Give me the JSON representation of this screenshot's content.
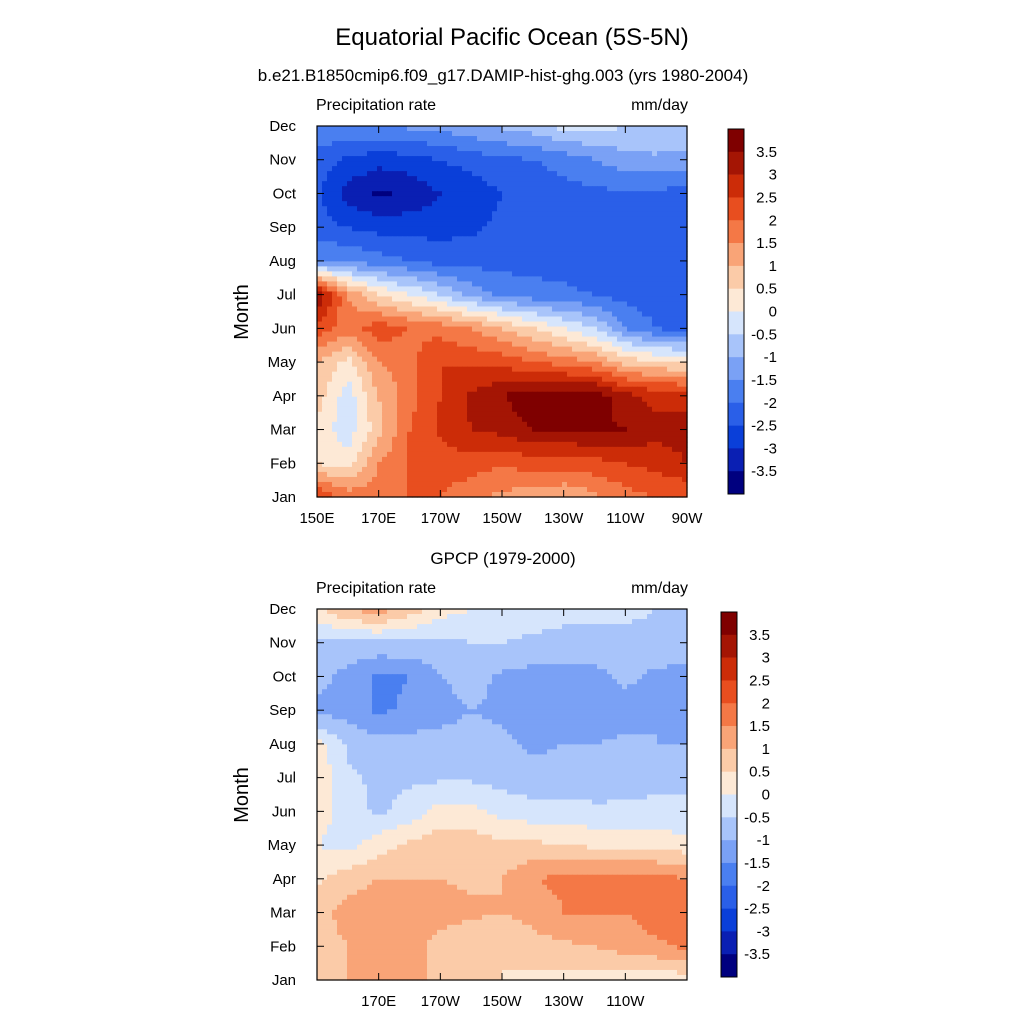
{
  "title": "Equatorial Pacific Ocean (5S-5N)",
  "colorbar": {
    "levels": [
      -3.5,
      -3,
      -2.5,
      -2,
      -1.5,
      -1,
      -0.5,
      0,
      0.5,
      1,
      1.5,
      2,
      2.5,
      3,
      3.5
    ],
    "labels": [
      "3.5",
      "3",
      "2.5",
      "2",
      "1.5",
      "1",
      "0.5",
      "0",
      "-0.5",
      "-1",
      "-1.5",
      "-2",
      "-2.5",
      "-3",
      "-3.5"
    ],
    "colors": [
      "#00007f",
      "#0a1fb3",
      "#0a3fd9",
      "#2a5fe8",
      "#4a7ff0",
      "#7aa1f5",
      "#a8c4fa",
      "#d6e5fc",
      "#fde9d6",
      "#fbcba8",
      "#f9a477",
      "#f47846",
      "#e84e1f",
      "#cc2c08",
      "#a41504",
      "#7f0000"
    ]
  },
  "chart_data": [
    {
      "type": "heatmap",
      "subtitle": "b.e21.B1850cmip6.f09_g17.DAMIP-hist-ghg.003 (yrs 1980-2004)",
      "left_label": "Precipitation rate",
      "right_label": "mm/day",
      "ylabel": "Month",
      "xticklabels": [
        "150E",
        "170E",
        "170W",
        "150W",
        "130W",
        "110W",
        "90W"
      ],
      "yticklabels": [
        "Jan",
        "Feb",
        "Mar",
        "Apr",
        "May",
        "Jun",
        "Jul",
        "Aug",
        "Sep",
        "Oct",
        "Nov",
        "Dec"
      ],
      "x": [
        "150E",
        "160E",
        "170E",
        "180",
        "170W",
        "160W",
        "150W",
        "140W",
        "130W",
        "120W",
        "110W",
        "100W",
        "90W"
      ],
      "y": [
        "Jan",
        "Feb",
        "Mar",
        "Apr",
        "May",
        "Jun",
        "Jul",
        "Aug",
        "Sep",
        "Oct",
        "Nov",
        "Dec"
      ],
      "values": [
        [
          2.5,
          1.8,
          1.8,
          2.0,
          2.0,
          1.6,
          1.4,
          1.2,
          1.0,
          1.4,
          1.8,
          2.0,
          2.0
        ],
        [
          0.5,
          0.2,
          1.5,
          2.0,
          2.3,
          2.3,
          2.0,
          2.3,
          2.3,
          2.3,
          2.5,
          2.7,
          3.0
        ],
        [
          0.3,
          -0.3,
          0.8,
          2.0,
          2.6,
          3.0,
          3.2,
          3.5,
          3.5,
          3.6,
          3.5,
          3.2,
          3.2
        ],
        [
          0.8,
          -0.3,
          1.0,
          1.8,
          2.5,
          3.1,
          3.5,
          3.8,
          3.8,
          3.8,
          3.2,
          2.8,
          2.8
        ],
        [
          1.0,
          0.3,
          1.5,
          1.8,
          2.5,
          2.4,
          2.3,
          2.0,
          1.8,
          1.5,
          0.8,
          0.6,
          0.4
        ],
        [
          2.3,
          1.8,
          2.3,
          2.0,
          1.8,
          1.5,
          1.0,
          0.5,
          0.0,
          -0.5,
          -1.5,
          -2.0,
          -2.2
        ],
        [
          3.5,
          1.5,
          0.5,
          0.0,
          -0.5,
          -1.2,
          -1.6,
          -1.8,
          -1.9,
          -2.0,
          -2.2,
          -2.3,
          -2.3
        ],
        [
          -1.5,
          -1.6,
          -1.8,
          -2.0,
          -2.2,
          -2.2,
          -2.2,
          -2.2,
          -2.2,
          -2.3,
          -2.2,
          -2.3,
          -2.3
        ],
        [
          -2.3,
          -2.5,
          -2.7,
          -2.7,
          -2.7,
          -2.6,
          -2.4,
          -2.3,
          -2.2,
          -2.1,
          -2.2,
          -2.2,
          -2.2
        ],
        [
          -2.4,
          -3.2,
          -3.6,
          -3.4,
          -3.0,
          -2.8,
          -2.5,
          -2.4,
          -2.2,
          -2.1,
          -2.1,
          -2.1,
          -2.2
        ],
        [
          -2.2,
          -2.6,
          -2.8,
          -2.7,
          -2.5,
          -2.3,
          -2.1,
          -2.0,
          -1.8,
          -1.5,
          -1.2,
          -1.1,
          -1.2
        ],
        [
          -1.6,
          -1.6,
          -1.5,
          -1.4,
          -1.3,
          -1.1,
          -0.9,
          -0.7,
          -0.3,
          -0.3,
          -0.5,
          -0.5,
          -0.6
        ]
      ]
    },
    {
      "type": "heatmap",
      "subtitle": "GPCP (1979-2000)",
      "left_label": "Precipitation rate",
      "right_label": "mm/day",
      "ylabel": "Month",
      "xticklabels": [
        "170E",
        "170W",
        "150W",
        "130W",
        "110W"
      ],
      "yticklabels": [
        "Jan",
        "Feb",
        "Mar",
        "Apr",
        "May",
        "Jun",
        "Jul",
        "Aug",
        "Sep",
        "Oct",
        "Nov",
        "Dec"
      ],
      "x": [
        "150E",
        "160E",
        "170E",
        "180",
        "170W",
        "160W",
        "150W",
        "140W",
        "130W",
        "120W",
        "110W",
        "100W",
        "90W"
      ],
      "y": [
        "Jan",
        "Feb",
        "Mar",
        "Apr",
        "May",
        "Jun",
        "Jul",
        "Aug",
        "Sep",
        "Oct",
        "Nov",
        "Dec"
      ],
      "values": [
        [
          0.5,
          1.0,
          1.2,
          1.2,
          0.8,
          0.6,
          0.5,
          0.4,
          0.3,
          0.3,
          0.3,
          0.2,
          0.2
        ],
        [
          0.8,
          1.0,
          1.5,
          1.2,
          0.8,
          0.6,
          0.5,
          0.8,
          0.9,
          1.0,
          1.2,
          1.4,
          1.6
        ],
        [
          0.8,
          1.2,
          1.3,
          1.2,
          1.2,
          1.1,
          1.0,
          1.2,
          1.5,
          1.5,
          1.5,
          1.8,
          1.8
        ],
        [
          0.4,
          0.8,
          1.0,
          1.0,
          1.0,
          0.9,
          1.0,
          1.5,
          1.6,
          1.7,
          1.7,
          1.7,
          1.5
        ],
        [
          0.0,
          -0.2,
          0.3,
          0.6,
          0.8,
          0.8,
          0.6,
          0.6,
          0.5,
          0.4,
          0.3,
          0.3,
          0.2
        ],
        [
          0.3,
          -0.3,
          -0.6,
          -0.3,
          0.2,
          0.2,
          -0.2,
          -0.3,
          -0.3,
          -0.4,
          -0.4,
          -0.4,
          -0.4
        ],
        [
          0.4,
          -0.4,
          -0.6,
          -0.6,
          -0.6,
          -0.6,
          -0.7,
          -0.8,
          -0.8,
          -0.8,
          -0.7,
          -0.6,
          -0.6
        ],
        [
          0.2,
          -0.6,
          -0.8,
          -0.8,
          -0.8,
          -0.8,
          -0.9,
          -1.1,
          -1.0,
          -1.0,
          -0.9,
          -1.0,
          -1.0
        ],
        [
          -1.2,
          -1.2,
          -1.6,
          -1.4,
          -1.2,
          -1.0,
          -1.1,
          -1.2,
          -1.3,
          -1.4,
          -1.2,
          -1.0,
          -1.2
        ],
        [
          -0.8,
          -1.2,
          -1.6,
          -1.5,
          -1.0,
          -0.8,
          -1.1,
          -1.2,
          -1.2,
          -1.1,
          -0.9,
          -1.1,
          -1.2
        ],
        [
          -0.6,
          -0.6,
          -0.6,
          -0.6,
          -0.6,
          -0.5,
          -0.5,
          -0.6,
          -0.7,
          -0.8,
          -0.8,
          -0.7,
          -0.6
        ],
        [
          0.4,
          1.0,
          1.3,
          0.8,
          0.2,
          0.0,
          -0.2,
          -0.2,
          -0.3,
          -0.2,
          -0.3,
          -0.5,
          -0.6
        ]
      ]
    }
  ]
}
